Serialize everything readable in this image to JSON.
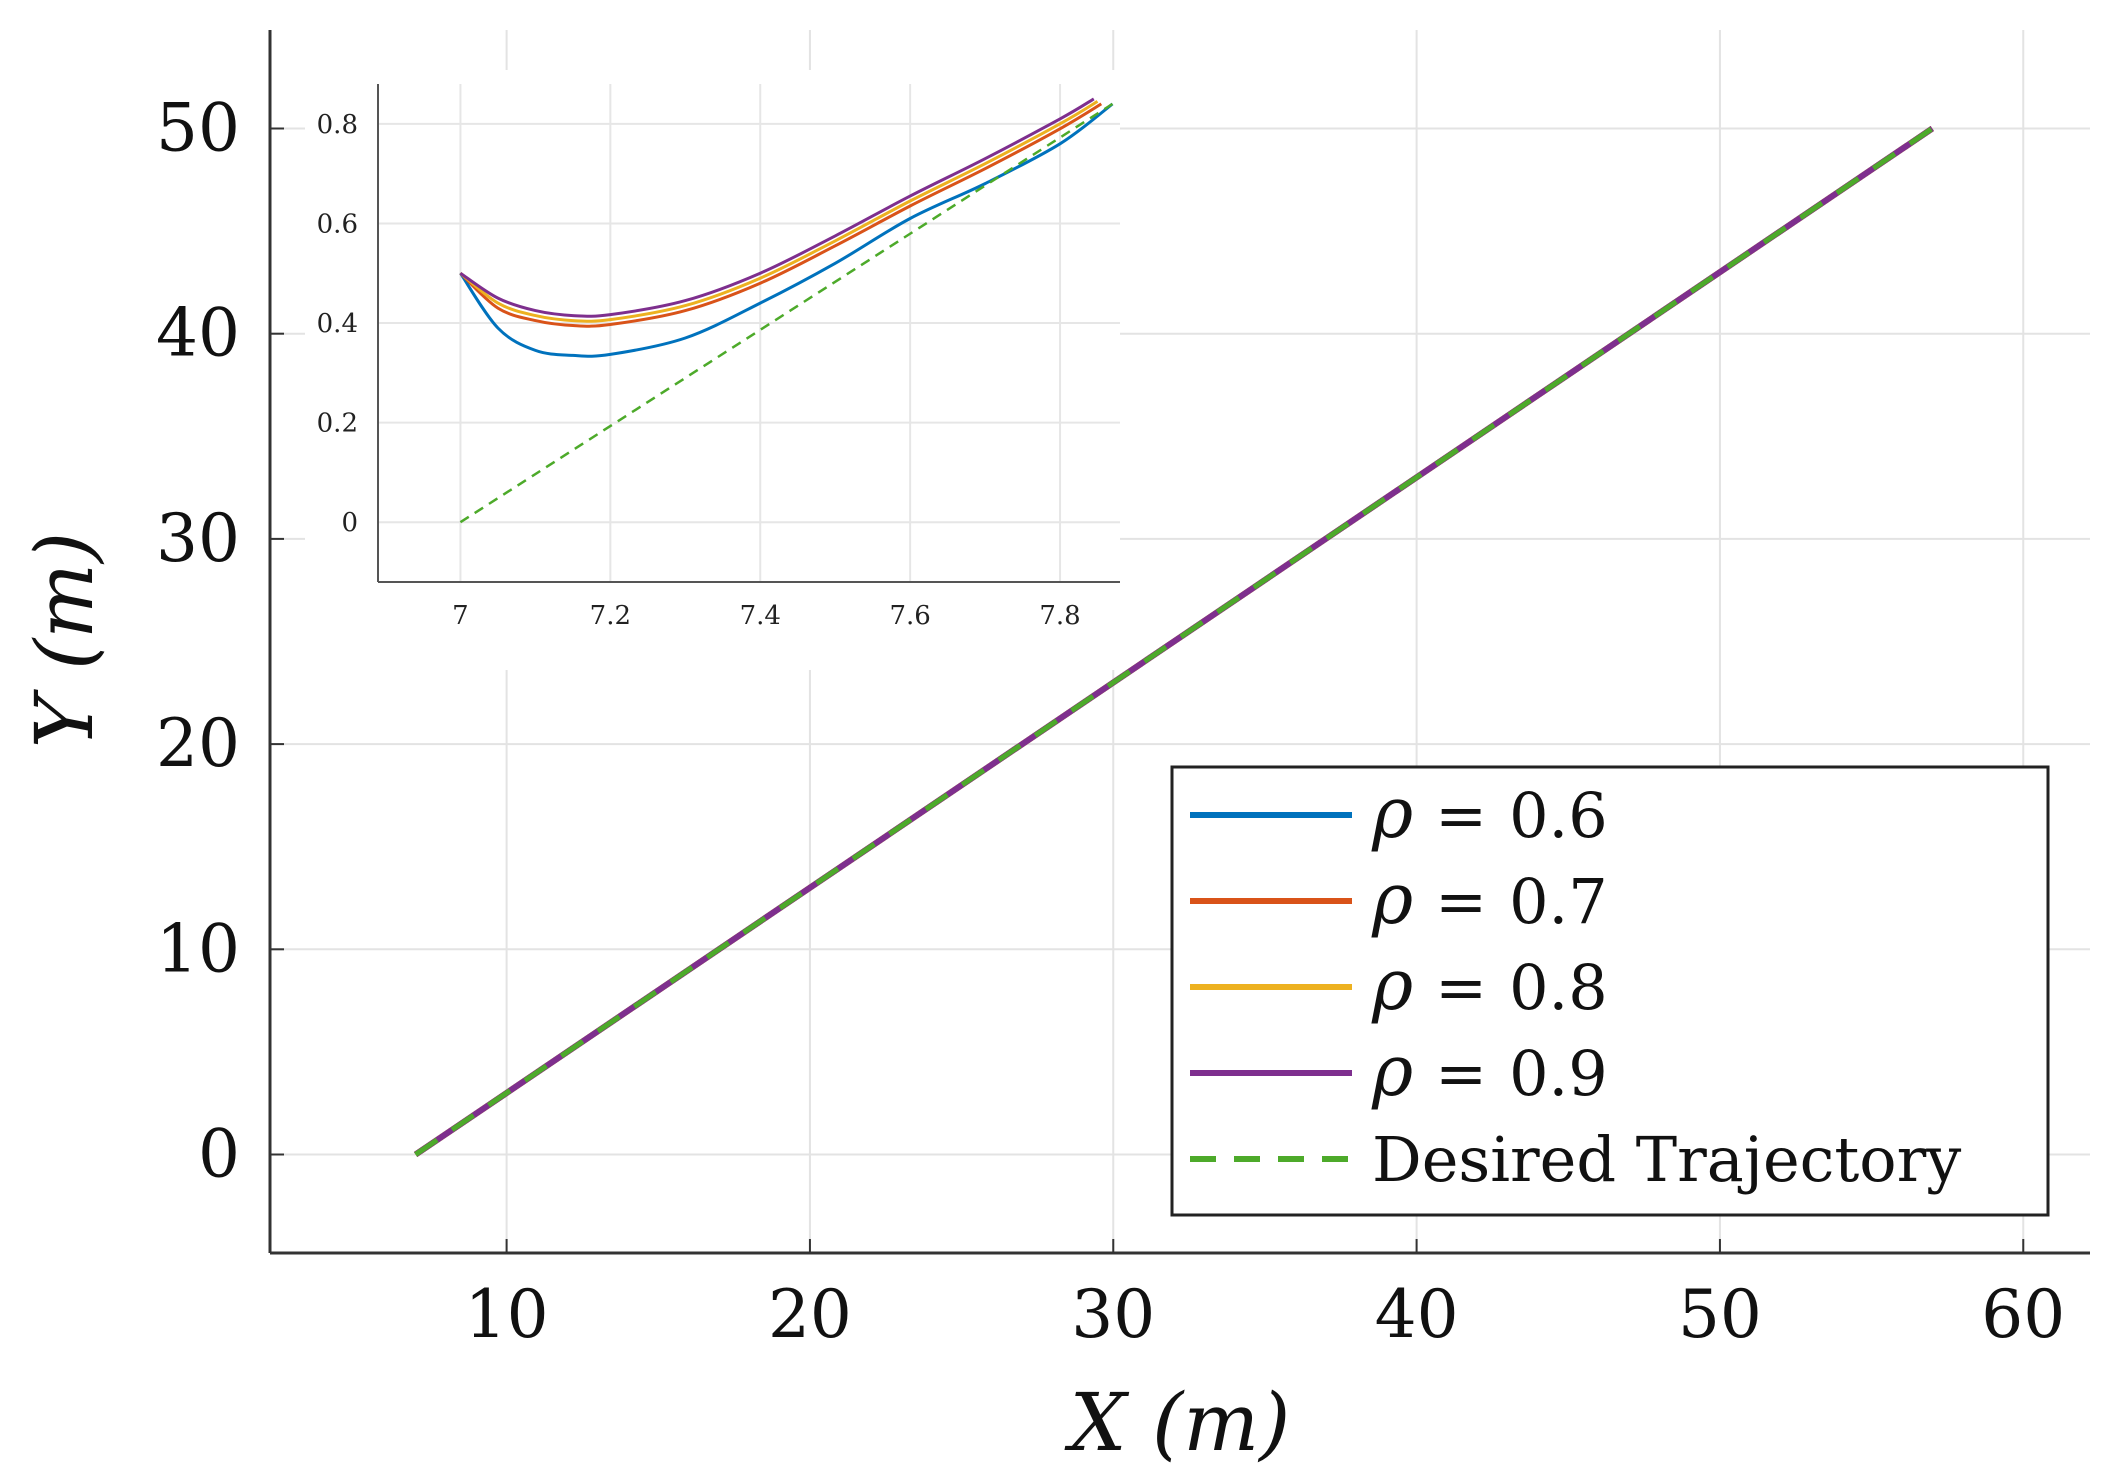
{
  "chart_data": [
    {
      "type": "line",
      "role": "main",
      "xlabel": "X (m)",
      "ylabel": "Y (m)",
      "xlim": [
        2.2,
        62.2
      ],
      "ylim": [
        -4.8,
        54.8
      ],
      "xticks": [
        10,
        20,
        30,
        40,
        50,
        60
      ],
      "yticks": [
        0,
        10,
        20,
        30,
        40,
        50
      ],
      "grid": true,
      "legend_position": "bottom-right",
      "series": [
        {
          "name": "ρ = 0.6",
          "label_var": "ρ",
          "label_op": "=",
          "label_val": "0.6",
          "color": "#0072BD",
          "style": "solid",
          "x": [
            7,
            57
          ],
          "y": [
            0,
            50
          ]
        },
        {
          "name": "ρ = 0.7",
          "label_var": "ρ",
          "label_op": "=",
          "label_val": "0.7",
          "color": "#D95319",
          "style": "solid",
          "x": [
            7,
            57
          ],
          "y": [
            0,
            50
          ]
        },
        {
          "name": "ρ = 0.8",
          "label_var": "ρ",
          "label_op": "=",
          "label_val": "0.8",
          "color": "#EDB120",
          "style": "solid",
          "x": [
            7,
            57
          ],
          "y": [
            0,
            50
          ]
        },
        {
          "name": "ρ = 0.9",
          "label_var": "ρ",
          "label_op": "=",
          "label_val": "0.9",
          "color": "#7E2F8E",
          "style": "solid",
          "x": [
            7,
            57
          ],
          "y": [
            0,
            50
          ]
        },
        {
          "name": "Desired Trajectory",
          "color": "#4DAA2A",
          "style": "dashed",
          "x": [
            7,
            57
          ],
          "y": [
            0,
            50
          ]
        }
      ]
    },
    {
      "type": "line",
      "role": "inset-zoom",
      "xlim": [
        6.89,
        7.88
      ],
      "ylim": [
        -0.12,
        0.88
      ],
      "xticks": [
        7,
        7.2,
        7.4,
        7.6,
        7.8
      ],
      "xtick_labels": [
        "7",
        "7.2",
        "7.4",
        "7.6",
        "7.8"
      ],
      "yticks": [
        0,
        0.2,
        0.4,
        0.6,
        0.8
      ],
      "ytick_labels": [
        "0",
        "0.2",
        "0.4",
        "0.6",
        "0.8"
      ],
      "grid": true,
      "series": [
        {
          "name": "ρ = 0.6",
          "color": "#0072BD",
          "style": "solid",
          "x": [
            7.0,
            7.05,
            7.1,
            7.15,
            7.2,
            7.3,
            7.4,
            7.5,
            7.6,
            7.7,
            7.8,
            7.87
          ],
          "y": [
            0.5,
            0.39,
            0.345,
            0.335,
            0.337,
            0.37,
            0.44,
            0.52,
            0.61,
            0.68,
            0.76,
            0.84
          ]
        },
        {
          "name": "ρ = 0.7",
          "color": "#D95319",
          "style": "solid",
          "x": [
            7.0,
            7.05,
            7.1,
            7.15,
            7.2,
            7.3,
            7.4,
            7.5,
            7.6,
            7.7,
            7.8,
            7.855
          ],
          "y": [
            0.5,
            0.43,
            0.405,
            0.395,
            0.397,
            0.425,
            0.48,
            0.555,
            0.635,
            0.71,
            0.79,
            0.84
          ]
        },
        {
          "name": "ρ = 0.8",
          "color": "#EDB120",
          "style": "solid",
          "x": [
            7.0,
            7.05,
            7.1,
            7.15,
            7.2,
            7.3,
            7.4,
            7.5,
            7.6,
            7.7,
            7.8,
            7.85
          ],
          "y": [
            0.5,
            0.44,
            0.415,
            0.405,
            0.407,
            0.435,
            0.49,
            0.565,
            0.645,
            0.72,
            0.8,
            0.845
          ]
        },
        {
          "name": "ρ = 0.9",
          "color": "#7E2F8E",
          "style": "solid",
          "x": [
            7.0,
            7.05,
            7.1,
            7.15,
            7.2,
            7.3,
            7.4,
            7.5,
            7.6,
            7.7,
            7.8,
            7.845
          ],
          "y": [
            0.5,
            0.45,
            0.425,
            0.415,
            0.417,
            0.445,
            0.5,
            0.575,
            0.655,
            0.73,
            0.81,
            0.85
          ]
        },
        {
          "name": "Desired Trajectory",
          "color": "#4DAA2A",
          "style": "dashed",
          "x": [
            7.0,
            7.87
          ],
          "y": [
            0.0,
            0.84
          ]
        }
      ]
    }
  ]
}
